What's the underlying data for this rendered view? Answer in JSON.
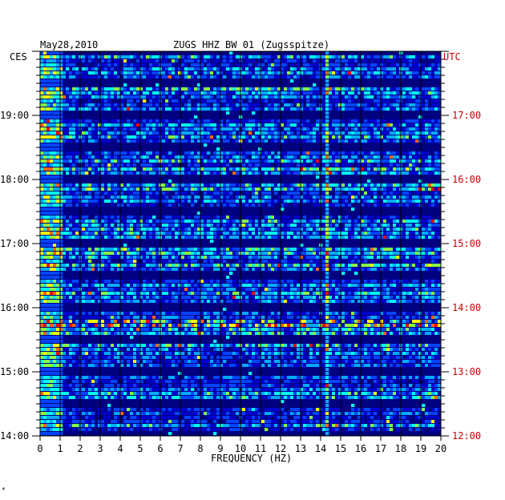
{
  "chart_data": {
    "type": "heatmap",
    "title": "ZUGS HHZ BW 01 (Zugsspitze)",
    "date": "May28,2010",
    "left_timezone": "CES",
    "right_timezone": "UTC",
    "xlabel": "FREQUENCY (HZ)",
    "x_ticks": [
      "0",
      "1",
      "2",
      "3",
      "4",
      "5",
      "6",
      "7",
      "8",
      "9",
      "10",
      "11",
      "12",
      "13",
      "14",
      "15",
      "16",
      "17",
      "18",
      "19",
      "20"
    ],
    "xlim": [
      0,
      20
    ],
    "y_ticks_left": [
      "19:00",
      "18:00",
      "17:00",
      "16:00",
      "15:00",
      "14:00"
    ],
    "y_ticks_right": [
      "17:00",
      "16:00",
      "15:00",
      "14:00",
      "13:00",
      "12:00"
    ],
    "time_range_ces": [
      "14:00",
      "20:00"
    ],
    "grid": true,
    "colormap": [
      "#000066",
      "#0000cc",
      "#0044ff",
      "#00aaff",
      "#00ffee",
      "#88ff44",
      "#ffff00",
      "#ff6600",
      "#ff0000"
    ],
    "notable_features": [
      {
        "label": "persistent line",
        "frequency_hz": 14.3
      },
      {
        "label": "broadband event",
        "time_ces": "16:26"
      }
    ],
    "footer_mark": "*"
  },
  "colors": {
    "grid": "#000000",
    "background_low": "#000080",
    "right_axis": "#cc0000"
  }
}
